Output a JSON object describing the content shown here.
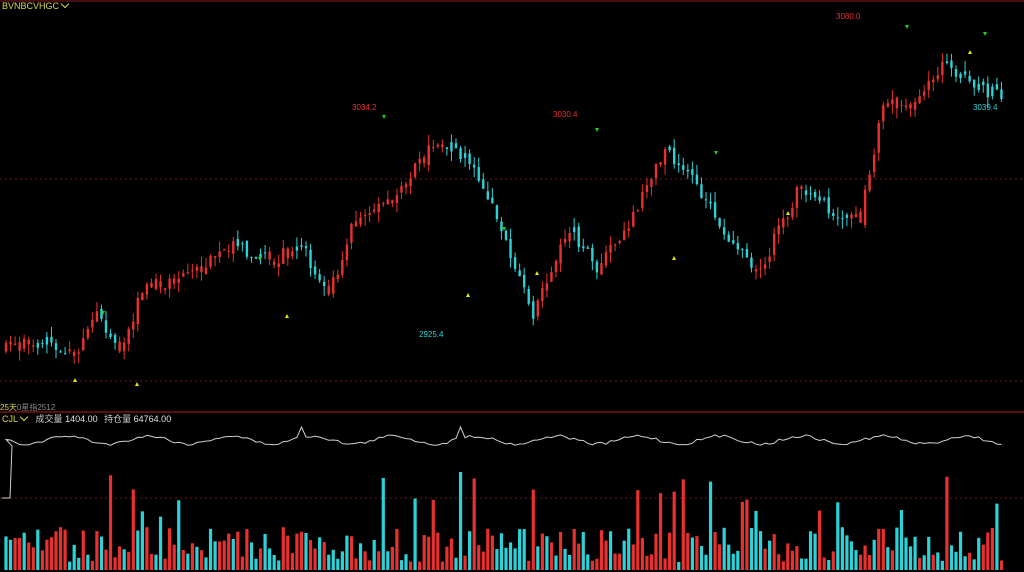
{
  "main_panel": {
    "symbol_label": "BVNBCVHGC",
    "bottom_left_label": "25天",
    "bottom_label": "0星指2512",
    "price_annotations": {
      "high1": "3034.2",
      "low1": "2925.4",
      "high2": "3030.4",
      "high3": "3080.0",
      "last": "3039.4"
    }
  },
  "volume_panel": {
    "indicator_label": "CJL",
    "volume_label": "成交量",
    "volume_value": "1404.00",
    "oi_label": "持仓量",
    "oi_value": "64764.00"
  },
  "colors": {
    "up": "#e8312f",
    "down": "#2bd3d8",
    "separator": "#8a1a1a",
    "grid_dash": "#6a1a1a",
    "text_yellow": "#d8d84a",
    "marker_up": "#e8e800",
    "marker_down": "#22cc22",
    "oi_line": "#d0d0d0"
  },
  "chart_data": {
    "type": "candlestick",
    "price_range": [
      2880,
      3110
    ],
    "candle_count": 220,
    "labelled_extremes": [
      {
        "label": "3034.2",
        "kind": "high",
        "value": 3034.2
      },
      {
        "label": "2925.4",
        "kind": "low",
        "value": 2925.4
      },
      {
        "label": "3030.4",
        "kind": "high",
        "value": 3030.4
      },
      {
        "label": "3080.0",
        "kind": "high",
        "value": 3080.0
      },
      {
        "label": "3039.4",
        "kind": "last",
        "value": 3039.4
      }
    ],
    "path_anchors": [
      {
        "i": 0,
        "p": 2915
      },
      {
        "i": 8,
        "p": 2920
      },
      {
        "i": 15,
        "p": 2910
      },
      {
        "i": 20,
        "p": 2935
      },
      {
        "i": 25,
        "p": 2910
      },
      {
        "i": 30,
        "p": 2950
      },
      {
        "i": 40,
        "p": 2955
      },
      {
        "i": 50,
        "p": 2975
      },
      {
        "i": 58,
        "p": 2965
      },
      {
        "i": 65,
        "p": 2975
      },
      {
        "i": 71,
        "p": 2945
      },
      {
        "i": 76,
        "p": 2985
      },
      {
        "i": 85,
        "p": 3000
      },
      {
        "i": 95,
        "p": 3035
      },
      {
        "i": 101,
        "p": 3025
      },
      {
        "i": 108,
        "p": 2990
      },
      {
        "i": 116,
        "p": 2935
      },
      {
        "i": 124,
        "p": 2985
      },
      {
        "i": 130,
        "p": 2960
      },
      {
        "i": 137,
        "p": 2985
      },
      {
        "i": 145,
        "p": 3030
      },
      {
        "i": 152,
        "p": 3010
      },
      {
        "i": 158,
        "p": 2980
      },
      {
        "i": 166,
        "p": 2960
      },
      {
        "i": 174,
        "p": 3005
      },
      {
        "i": 182,
        "p": 2995
      },
      {
        "i": 188,
        "p": 2990
      },
      {
        "i": 193,
        "p": 3055
      },
      {
        "i": 199,
        "p": 3055
      },
      {
        "i": 206,
        "p": 3078
      },
      {
        "i": 213,
        "p": 3065
      },
      {
        "i": 219,
        "p": 3060
      }
    ]
  }
}
